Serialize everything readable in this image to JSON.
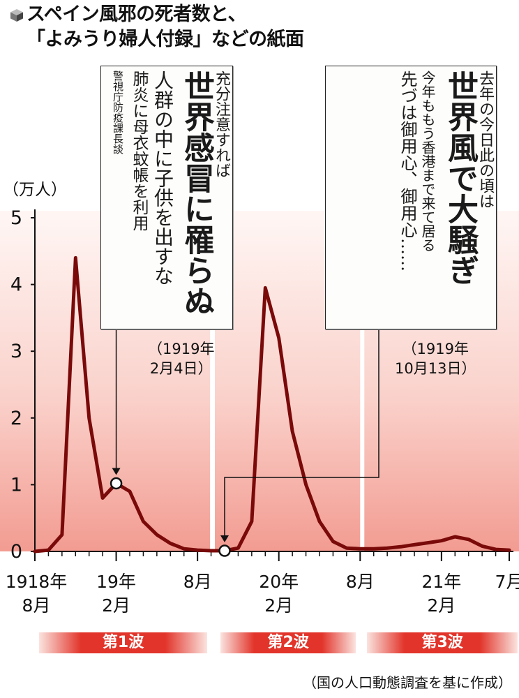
{
  "title": {
    "line1": "スペイン風邪の死者数と、",
    "line2": "「よみうり婦人付録」などの紙面"
  },
  "colors": {
    "line": "#7a0a0a",
    "band": "#e8443a",
    "band_light": "#fbe3df",
    "wave_bar": "#e2342a"
  },
  "chart_data": {
    "type": "line",
    "unit_label": "（万人）",
    "ylim": [
      0,
      5
    ],
    "yticks": [
      "0",
      "1",
      "2",
      "3",
      "4",
      "5"
    ],
    "xlim": [
      0,
      35
    ],
    "x_tick_labels": [
      {
        "month_index": 0,
        "line1": "1918年",
        "line2": "8月"
      },
      {
        "month_index": 6,
        "line1": "19年",
        "line2": "2月"
      },
      {
        "month_index": 12,
        "line1": "8月",
        "line2": ""
      },
      {
        "month_index": 18,
        "line1": "20年",
        "line2": "2月"
      },
      {
        "month_index": 24,
        "line1": "8月",
        "line2": ""
      },
      {
        "month_index": 30,
        "line1": "21年",
        "line2": "2月"
      },
      {
        "month_index": 35,
        "line1": "7月",
        "line2": ""
      }
    ],
    "series": [
      {
        "values": [
          [
            0,
            0.0
          ],
          [
            1,
            0.02
          ],
          [
            2,
            0.25
          ],
          [
            3,
            4.4
          ],
          [
            4,
            2.0
          ],
          [
            5,
            0.8
          ],
          [
            6,
            1.02
          ],
          [
            7,
            0.9
          ],
          [
            8,
            0.45
          ],
          [
            9,
            0.25
          ],
          [
            10,
            0.12
          ],
          [
            11,
            0.04
          ],
          [
            12,
            0.02
          ],
          [
            13,
            0.01
          ],
          [
            14,
            0.01
          ],
          [
            15,
            0.05
          ],
          [
            16,
            0.45
          ],
          [
            17,
            3.95
          ],
          [
            18,
            3.2
          ],
          [
            19,
            1.8
          ],
          [
            20,
            1.0
          ],
          [
            21,
            0.45
          ],
          [
            22,
            0.15
          ],
          [
            23,
            0.05
          ],
          [
            24,
            0.04
          ],
          [
            25,
            0.04
          ],
          [
            26,
            0.05
          ],
          [
            27,
            0.07
          ],
          [
            28,
            0.1
          ],
          [
            29,
            0.13
          ],
          [
            30,
            0.16
          ],
          [
            31,
            0.22
          ],
          [
            32,
            0.18
          ],
          [
            33,
            0.08
          ],
          [
            34,
            0.03
          ],
          [
            35,
            0.02
          ]
        ]
      }
    ],
    "markers": [
      {
        "month_index": 6,
        "value": 1.02
      },
      {
        "month_index": 14,
        "value": 0.01
      }
    ],
    "waves": [
      {
        "label": "第1波",
        "start": 0,
        "end": 12
      },
      {
        "label": "第2波",
        "start": 14,
        "end": 24
      },
      {
        "label": "第3波",
        "start": 24,
        "end": 35
      }
    ]
  },
  "clippings": [
    {
      "date_note_line1": "（1919年",
      "date_note_line2": "2月4日）",
      "columns": [
        "充分注意すれば",
        "世界感冒に罹らぬ",
        "人群の中に子供を出すな",
        "肺炎に母衣蚊帳を利用",
        "警視庁防疫課長談"
      ]
    },
    {
      "date_note_line1": "（1919年",
      "date_note_line2": "10月13日）",
      "columns": [
        "去年の今日此の頃は",
        "世界風で大騒ぎ",
        "今年ももう香港まで来て居る",
        "先づは御用心、御用心……"
      ]
    }
  ],
  "source": "（国の人口動態調査を基に作成）"
}
